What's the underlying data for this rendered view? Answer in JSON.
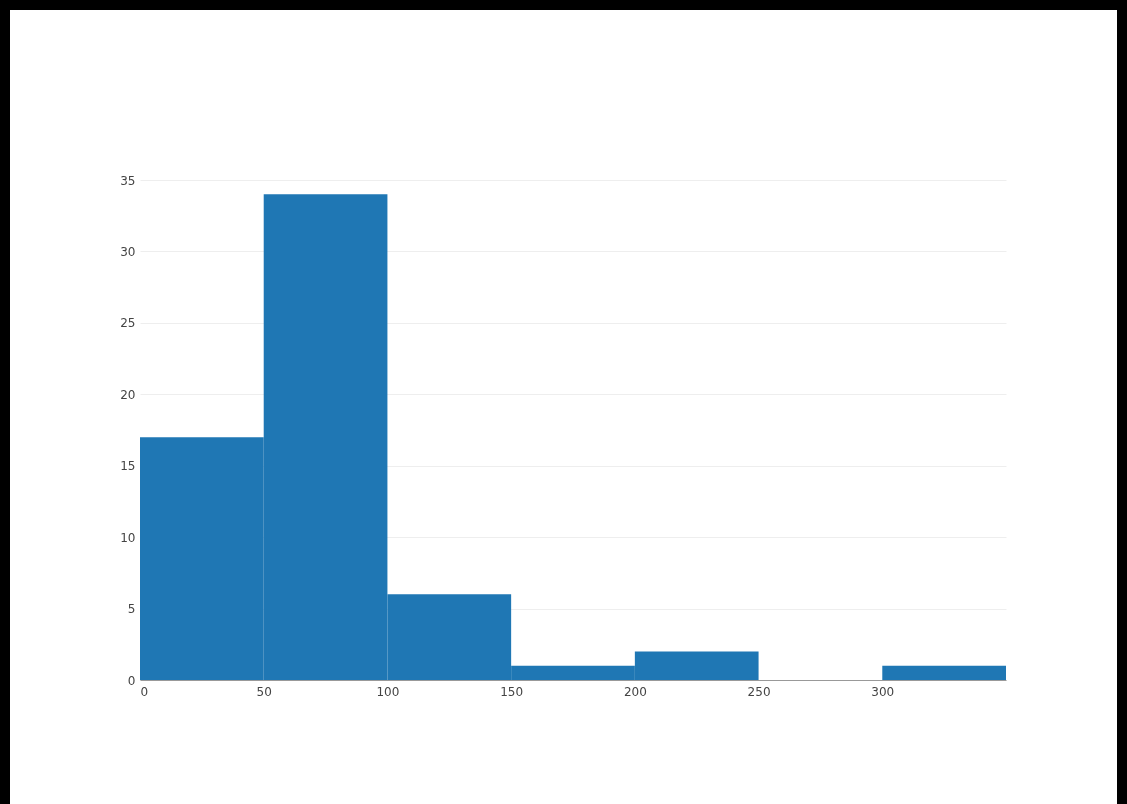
{
  "chart_data": {
    "type": "histogram",
    "bins": [
      0,
      50,
      100,
      150,
      200,
      250,
      300,
      350
    ],
    "values": [
      17,
      34,
      6,
      1,
      2,
      0,
      1
    ],
    "color": "#1f77b4",
    "xlim": [
      0,
      350
    ],
    "ylim": [
      0,
      35
    ],
    "xticks": [
      0,
      50,
      100,
      150,
      200,
      250,
      300
    ],
    "yticks": [
      0,
      5,
      10,
      15,
      20,
      25,
      30,
      35
    ],
    "grid": "y"
  }
}
